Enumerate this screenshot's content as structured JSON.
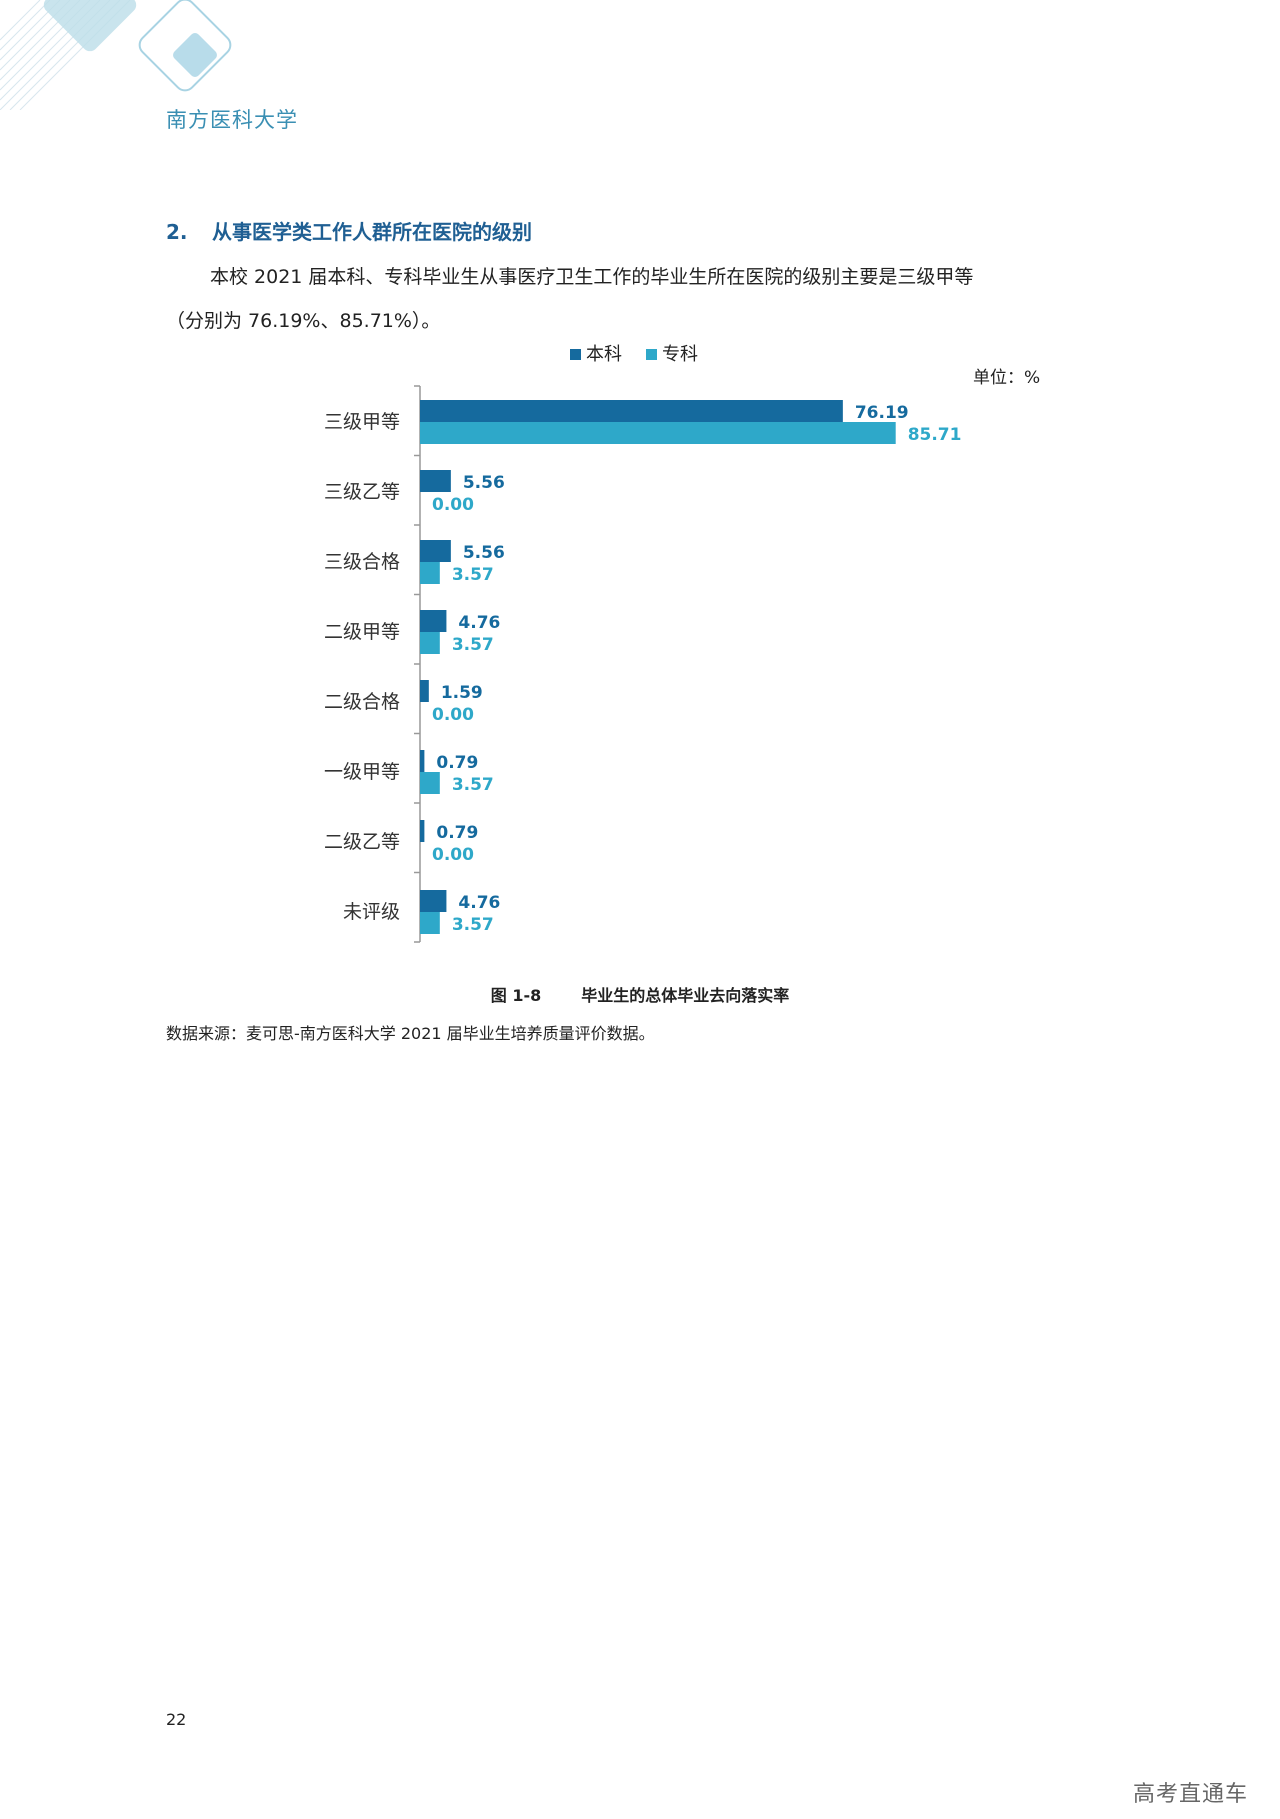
{
  "header": {
    "title": "南方医科大学"
  },
  "section": {
    "number": "2.",
    "heading": "从事医学类工作人群所在医院的级别",
    "paragraph_line1": "本校 2021 届本科、专科毕业生从事医疗卫生工作的毕业生所在医院的级别主要是三级甲等",
    "paragraph_line2": "（分别为 76.19%、85.71%）。"
  },
  "chart_data": {
    "type": "bar",
    "orientation": "horizontal",
    "unit_label": "单位：%",
    "legend_position": "top",
    "categories": [
      "三级甲等",
      "三级乙等",
      "三级合格",
      "二级甲等",
      "二级合格",
      "一级甲等",
      "二级乙等",
      "未评级"
    ],
    "series": [
      {
        "name": "本科",
        "color": "#156a9e",
        "values": [
          76.19,
          5.56,
          5.56,
          4.76,
          1.59,
          0.79,
          0.79,
          4.76
        ],
        "labels": [
          "76.19",
          "5.56",
          "5.56",
          "4.76",
          "1.59",
          "0.79",
          "0.79",
          "4.76"
        ]
      },
      {
        "name": "专科",
        "color": "#2ea8c9",
        "values": [
          85.71,
          0.0,
          3.57,
          3.57,
          0.0,
          3.57,
          0.0,
          3.57
        ],
        "labels": [
          "85.71",
          "0.00",
          "3.57",
          "3.57",
          "0.00",
          "3.57",
          "0.00",
          "3.57"
        ]
      }
    ],
    "xlim": [
      0,
      100
    ],
    "grid": false
  },
  "figure": {
    "number": "图 1-8",
    "title": "毕业生的总体毕业去向落实率"
  },
  "source": "数据来源：麦可思-南方医科大学 2021 届毕业生培养质量评价数据。",
  "page_number": "22",
  "watermark": "高考直通车",
  "colors": {
    "brand": "#3a8fb3",
    "heading": "#1f5f93"
  }
}
